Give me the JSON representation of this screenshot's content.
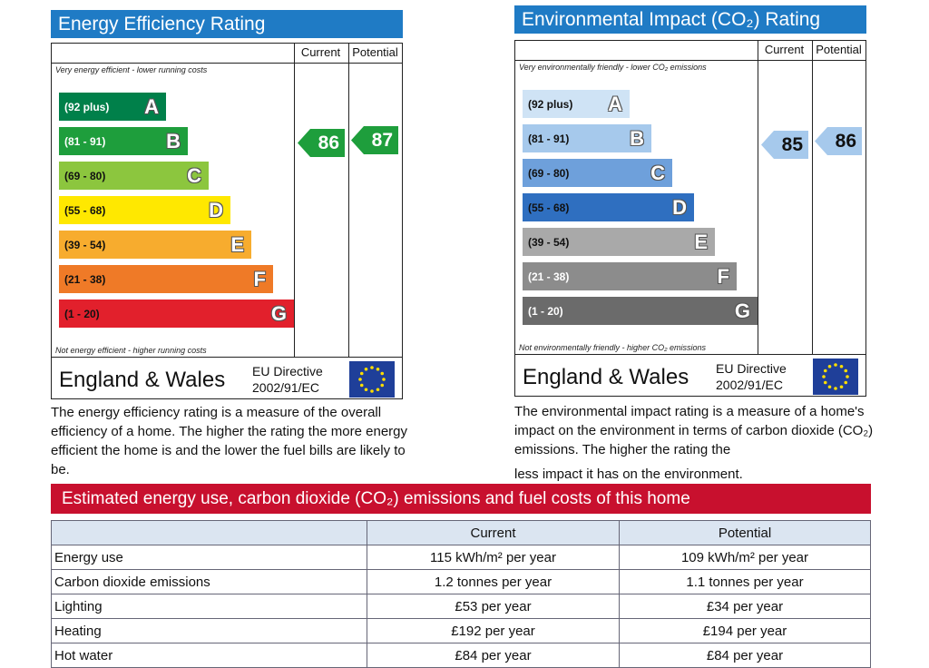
{
  "energy": {
    "title": "Energy Efficiency Rating",
    "title_color": "#1f7bc5",
    "col_current": "Current",
    "col_potential": "Potential",
    "top_note": "Very energy efficient - lower running costs",
    "bottom_note": "Not energy efficient - higher running costs",
    "bands": [
      {
        "range": "(92 plus)",
        "letter": "A",
        "color": "#00804a",
        "text": "#fff"
      },
      {
        "range": "(81 - 91)",
        "letter": "B",
        "color": "#1e9e3c",
        "text": "#fff"
      },
      {
        "range": "(69 - 80)",
        "letter": "C",
        "color": "#8cc63e",
        "text": "#111"
      },
      {
        "range": "(55 - 68)",
        "letter": "D",
        "color": "#ffe800",
        "text": "#111"
      },
      {
        "range": "(39 - 54)",
        "letter": "E",
        "color": "#f7ac2e",
        "text": "#111"
      },
      {
        "range": "(21 - 38)",
        "letter": "F",
        "color": "#ef7a27",
        "text": "#111"
      },
      {
        "range": "(1 - 20)",
        "letter": "G",
        "color": "#e2202c",
        "text": "#111"
      }
    ],
    "current_value": "86",
    "potential_value": "87",
    "arrow_color": "#1e9e3c",
    "region": "England & Wales",
    "directive_line1": "EU Directive",
    "directive_line2": "2002/91/EC",
    "description": "The energy efficiency rating is a measure of the overall efficiency of a home. The higher the rating the more energy efficient the home is and the lower the fuel bills are likely to be."
  },
  "environment": {
    "title": "Environmental Impact (CO₂) Rating",
    "title_color": "#1f7bc5",
    "col_current": "Current",
    "col_potential": "Potential",
    "top_note": "Very environmentally friendly - lower CO₂ emissions",
    "bottom_note": "Not environmentally friendly - higher CO₂ emissions",
    "bands": [
      {
        "range": "(92 plus)",
        "letter": "A",
        "color": "#cfe3f5",
        "text": "#111"
      },
      {
        "range": "(81 - 91)",
        "letter": "B",
        "color": "#a6c9ec",
        "text": "#111"
      },
      {
        "range": "(69 - 80)",
        "letter": "C",
        "color": "#6ea0db",
        "text": "#111"
      },
      {
        "range": "(55 - 68)",
        "letter": "D",
        "color": "#2f6fc0",
        "text": "#111"
      },
      {
        "range": "(39 - 54)",
        "letter": "E",
        "color": "#a9a9a9",
        "text": "#111"
      },
      {
        "range": "(21 - 38)",
        "letter": "F",
        "color": "#8c8c8c",
        "text": "#fff"
      },
      {
        "range": "(1 - 20)",
        "letter": "G",
        "color": "#6b6b6b",
        "text": "#fff"
      }
    ],
    "current_value": "85",
    "potential_value": "86",
    "arrow_color": "#a6c9ec",
    "region": "England & Wales",
    "directive_line1": "EU Directive",
    "directive_line2": "2002/91/EC",
    "description_line1": "The environmental impact rating is a measure of a home's impact on the environment in terms of carbon dioxide (CO₂) emissions. The higher the rating the",
    "description_line2": "less impact it has on the environment."
  },
  "estimates": {
    "title": "Estimated energy use, carbon dioxide (CO₂) emissions and fuel costs of this home",
    "title_color": "#c8102e",
    "header": [
      "",
      "Current",
      "Potential"
    ],
    "rows": [
      [
        "Energy use",
        "115 kWh/m² per year",
        "109 kWh/m² per year"
      ],
      [
        "Carbon dioxide emissions",
        "1.2 tonnes per year",
        "1.1 tonnes per year"
      ],
      [
        "Lighting",
        "£53 per year",
        "£34 per year"
      ],
      [
        "Heating",
        "£192 per year",
        "£194 per year"
      ],
      [
        "Hot water",
        "£84 per year",
        "£84 per year"
      ]
    ]
  }
}
